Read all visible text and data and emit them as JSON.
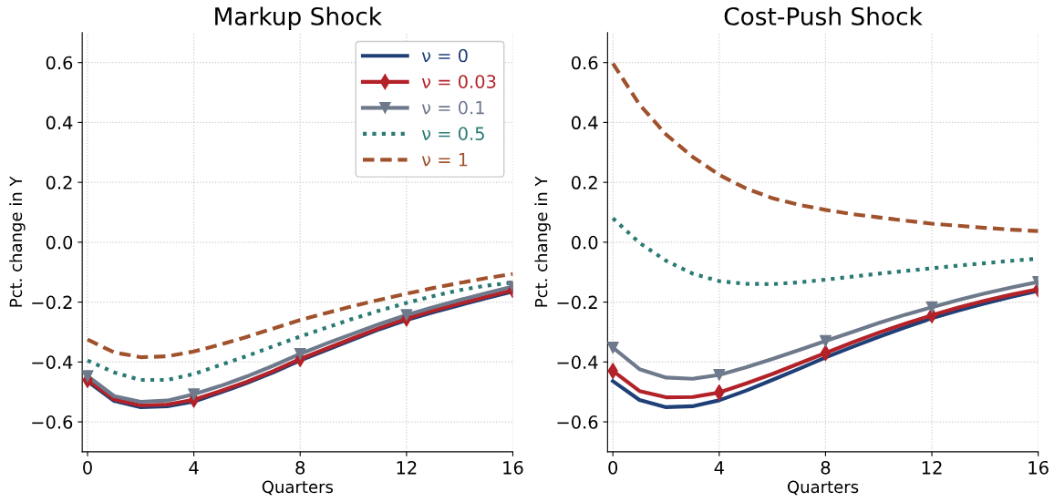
{
  "chart_data": [
    {
      "type": "line",
      "title": "Markup Shock",
      "xlabel": "Quarters",
      "ylabel": "Pct. change in Y",
      "x": [
        0,
        1,
        2,
        3,
        4,
        5,
        6,
        7,
        8,
        9,
        10,
        11,
        12,
        13,
        14,
        15,
        16
      ],
      "xlim": [
        -0.2,
        16
      ],
      "ylim": [
        -0.7,
        0.7
      ],
      "xticks": [
        0,
        4,
        8,
        12,
        16
      ],
      "yticks": [
        -0.6,
        -0.4,
        -0.2,
        {
          "value": 0,
          "label": "0.0"
        },
        0.2,
        0.4,
        0.6
      ],
      "grid": true,
      "legend": "top right",
      "series": [
        {
          "name": "ν = 0",
          "color": "#1f3f77",
          "line_style": "solid",
          "values": [
            -0.465,
            -0.53,
            -0.551,
            -0.548,
            -0.532,
            -0.502,
            -0.47,
            -0.434,
            -0.395,
            -0.36,
            -0.325,
            -0.29,
            -0.26,
            -0.234,
            -0.21,
            -0.187,
            -0.165
          ]
        },
        {
          "name": "ν = 0.03",
          "color": "#b22228",
          "line_style": "solid",
          "values": [
            -0.46,
            -0.525,
            -0.545,
            -0.542,
            -0.526,
            -0.497,
            -0.466,
            -0.43,
            -0.39,
            -0.355,
            -0.32,
            -0.286,
            -0.255,
            -0.229,
            -0.205,
            -0.182,
            -0.16
          ]
        },
        {
          "type": "scatter",
          "color": "#b22228",
          "marker": "diamond",
          "x": [
            0,
            4,
            8,
            12,
            16
          ],
          "values": [
            -0.46,
            -0.526,
            -0.39,
            -0.255,
            -0.16
          ]
        },
        {
          "name": "ν = 0.1",
          "color": "#6e7a8c",
          "line_style": "solid",
          "values": [
            -0.447,
            -0.514,
            -0.533,
            -0.529,
            -0.508,
            -0.48,
            -0.448,
            -0.412,
            -0.373,
            -0.338,
            -0.305,
            -0.273,
            -0.243,
            -0.217,
            -0.193,
            -0.17,
            -0.148
          ]
        },
        {
          "type": "scatter",
          "color": "#6e7a8c",
          "marker": "triangle",
          "x": [
            0,
            4,
            8,
            12,
            16
          ],
          "values": [
            -0.447,
            -0.508,
            -0.373,
            -0.243,
            -0.148
          ]
        },
        {
          "name": "ν = 0.5",
          "color": "#2a7a74",
          "line_style": "dotted",
          "values": [
            -0.395,
            -0.435,
            -0.46,
            -0.46,
            -0.44,
            -0.41,
            -0.38,
            -0.347,
            -0.315,
            -0.285,
            -0.255,
            -0.228,
            -0.203,
            -0.18,
            -0.16,
            -0.145,
            -0.135
          ]
        },
        {
          "name": "ν = 1",
          "color": "#a0522d",
          "line_style": "dashed",
          "values": [
            -0.325,
            -0.368,
            -0.384,
            -0.381,
            -0.365,
            -0.342,
            -0.316,
            -0.288,
            -0.26,
            -0.236,
            -0.213,
            -0.192,
            -0.172,
            -0.153,
            -0.136,
            -0.12,
            -0.106
          ]
        }
      ]
    },
    {
      "type": "line",
      "title": "Cost-Push Shock",
      "xlabel": "Quarters",
      "ylabel": "Pct. change in Y",
      "x": [
        0,
        1,
        2,
        3,
        4,
        5,
        6,
        7,
        8,
        9,
        10,
        11,
        12,
        13,
        14,
        15,
        16
      ],
      "xlim": [
        -0.2,
        16
      ],
      "ylim": [
        -0.7,
        0.7
      ],
      "xticks": [
        0,
        4,
        8,
        12,
        16
      ],
      "yticks": [
        -0.6,
        -0.4,
        -0.2,
        {
          "value": 0,
          "label": "0.0"
        },
        0.2,
        0.4,
        0.6
      ],
      "grid": true,
      "series": [
        {
          "color": "#1f3f77",
          "line_style": "solid",
          "values": [
            -0.464,
            -0.527,
            -0.551,
            -0.548,
            -0.528,
            -0.496,
            -0.46,
            -0.423,
            -0.385,
            -0.35,
            -0.316,
            -0.284,
            -0.254,
            -0.228,
            -0.204,
            -0.182,
            -0.162
          ]
        },
        {
          "color": "#b22228",
          "line_style": "solid",
          "values": [
            -0.43,
            -0.497,
            -0.518,
            -0.517,
            -0.502,
            -0.472,
            -0.44,
            -0.405,
            -0.37,
            -0.335,
            -0.302,
            -0.272,
            -0.244,
            -0.218,
            -0.195,
            -0.175,
            -0.157
          ]
        },
        {
          "type": "scatter",
          "color": "#b22228",
          "marker": "diamond",
          "x": [
            0,
            4,
            8,
            12,
            16
          ],
          "values": [
            -0.43,
            -0.502,
            -0.37,
            -0.244,
            -0.157
          ]
        },
        {
          "color": "#6e7a8c",
          "line_style": "solid",
          "values": [
            -0.352,
            -0.424,
            -0.452,
            -0.456,
            -0.443,
            -0.418,
            -0.39,
            -0.36,
            -0.33,
            -0.3,
            -0.27,
            -0.242,
            -0.217,
            -0.193,
            -0.171,
            -0.151,
            -0.133
          ]
        },
        {
          "type": "scatter",
          "color": "#6e7a8c",
          "marker": "triangle",
          "x": [
            0,
            4,
            8,
            12,
            16
          ],
          "values": [
            -0.352,
            -0.443,
            -0.33,
            -0.217,
            -0.133
          ]
        },
        {
          "color": "#2a7a74",
          "line_style": "dotted",
          "values": [
            0.08,
            -0.002,
            -0.062,
            -0.105,
            -0.13,
            -0.139,
            -0.14,
            -0.134,
            -0.125,
            -0.115,
            -0.105,
            -0.096,
            -0.087,
            -0.078,
            -0.07,
            -0.062,
            -0.055
          ]
        },
        {
          "color": "#a0522d",
          "line_style": "dashed",
          "values": [
            0.597,
            0.46,
            0.36,
            0.285,
            0.225,
            0.18,
            0.147,
            0.125,
            0.108,
            0.094,
            0.083,
            0.072,
            0.062,
            0.055,
            0.048,
            0.042,
            0.037
          ]
        }
      ]
    }
  ]
}
